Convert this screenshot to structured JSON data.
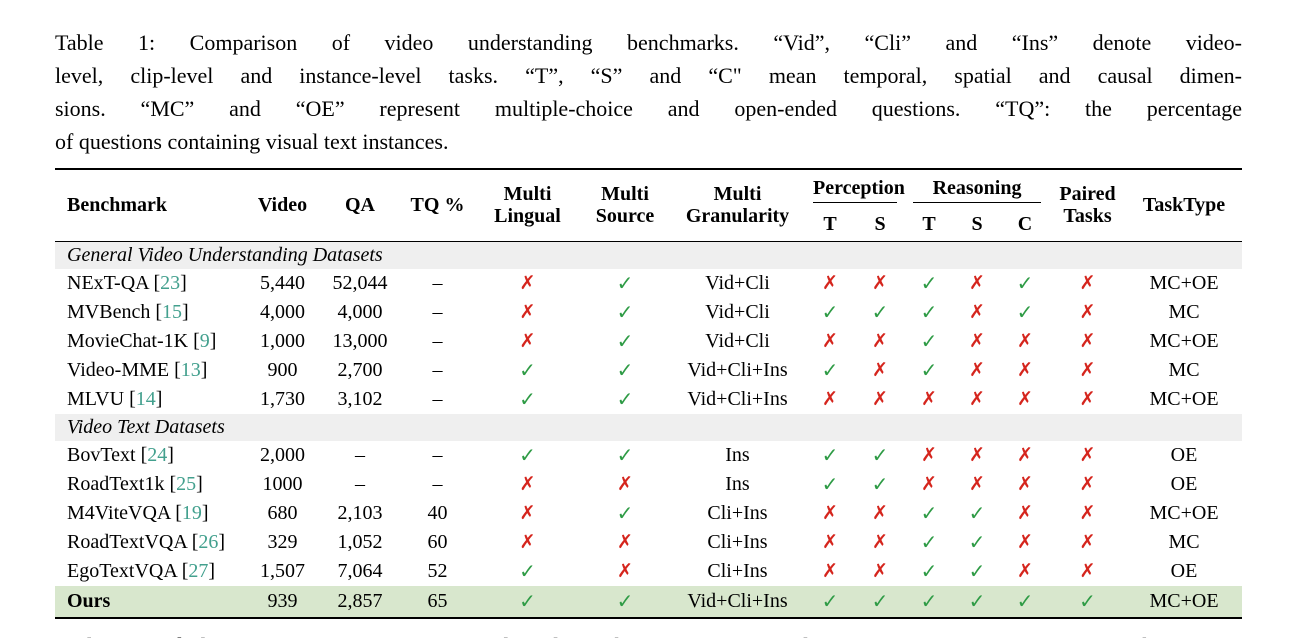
{
  "page": {
    "caption_lines": [
      "Table 1: Comparison of video understanding benchmarks. “Vid”, “Cli” and “Ins” denote video-",
      "level, clip-level and instance-level tasks. “T”, “S” and “C\" mean temporal, spatial and causal dimen-",
      "sions. “MC” and “OE” represent multiple-choice and open-ended questions. “TQ”: the percentage",
      "of questions containing visual text instances."
    ],
    "body_text_below": "vealing underlying motivations or causal relationships. For example, a “SALE” sign in a shop may"
  },
  "table": {
    "header": {
      "benchmark": "Benchmark",
      "video": "Video",
      "qa": "QA",
      "tq": "TQ %",
      "multi_lingual": "Multi Lingual",
      "multi_source": "Multi Source",
      "multi_granularity": "Multi Granularity",
      "perception": "Perception",
      "perception_subs": [
        "T",
        "S"
      ],
      "reasoning": "Reasoning",
      "reasoning_subs": [
        "T",
        "S",
        "C"
      ],
      "paired_tasks": "Paired Tasks",
      "tasktype": "TaskType"
    },
    "icons": {
      "check": "✓",
      "cross": "✗"
    },
    "colors": {
      "check_green": "#2e9b45",
      "cross_red": "#d5251d",
      "citation_teal": "#43a08e",
      "highlight_row_bg": "#d8e7cd",
      "section_row_bg": "#efefef"
    },
    "sections": [
      {
        "title": "General Video Understanding Datasets",
        "rows": [
          {
            "name": "NExT-QA",
            "cite": "23",
            "video": "5,440",
            "qa": "52,044",
            "tq": "–",
            "multi_lingual": "cross",
            "multi_source": "check",
            "granularity": "Vid+Cli",
            "perception": [
              "cross",
              "cross"
            ],
            "reasoning": [
              "check",
              "cross",
              "check"
            ],
            "paired": "cross",
            "tasktype": "MC+OE"
          },
          {
            "name": "MVBench",
            "cite": "15",
            "video": "4,000",
            "qa": "4,000",
            "tq": "–",
            "multi_lingual": "cross",
            "multi_source": "check",
            "granularity": "Vid+Cli",
            "perception": [
              "check",
              "check"
            ],
            "reasoning": [
              "check",
              "cross",
              "check"
            ],
            "paired": "cross",
            "tasktype": "MC"
          },
          {
            "name": "MovieChat-1K",
            "cite": "9",
            "video": "1,000",
            "qa": "13,000",
            "tq": "–",
            "multi_lingual": "cross",
            "multi_source": "check",
            "granularity": "Vid+Cli",
            "perception": [
              "cross",
              "cross"
            ],
            "reasoning": [
              "check",
              "cross",
              "cross"
            ],
            "paired": "cross",
            "tasktype": "MC+OE"
          },
          {
            "name": "Video-MME",
            "cite": "13",
            "video": "900",
            "qa": "2,700",
            "tq": "–",
            "multi_lingual": "check",
            "multi_source": "check",
            "granularity": "Vid+Cli+Ins",
            "perception": [
              "check",
              "cross"
            ],
            "reasoning": [
              "check",
              "cross",
              "cross"
            ],
            "paired": "cross",
            "tasktype": "MC"
          },
          {
            "name": "MLVU",
            "cite": "14",
            "video": "1,730",
            "qa": "3,102",
            "tq": "–",
            "multi_lingual": "check",
            "multi_source": "check",
            "granularity": "Vid+Cli+Ins",
            "perception": [
              "cross",
              "cross"
            ],
            "reasoning": [
              "cross",
              "cross",
              "cross"
            ],
            "paired": "cross",
            "tasktype": "MC+OE"
          }
        ]
      },
      {
        "title": "Video Text Datasets",
        "rows": [
          {
            "name": "BovText",
            "cite": "24",
            "video": "2,000",
            "qa": "–",
            "tq": "–",
            "multi_lingual": "check",
            "multi_source": "check",
            "granularity": "Ins",
            "perception": [
              "check",
              "check"
            ],
            "reasoning": [
              "cross",
              "cross",
              "cross"
            ],
            "paired": "cross",
            "tasktype": "OE"
          },
          {
            "name": "RoadText1k",
            "cite": "25",
            "video": "1000",
            "qa": "–",
            "tq": "–",
            "multi_lingual": "cross",
            "multi_source": "cross",
            "granularity": "Ins",
            "perception": [
              "check",
              "check"
            ],
            "reasoning": [
              "cross",
              "cross",
              "cross"
            ],
            "paired": "cross",
            "tasktype": "OE"
          },
          {
            "name": "M4ViteVQA",
            "cite": "19",
            "video": "680",
            "qa": "2,103",
            "tq": "40",
            "multi_lingual": "cross",
            "multi_source": "check",
            "granularity": "Cli+Ins",
            "perception": [
              "cross",
              "cross"
            ],
            "reasoning": [
              "check",
              "check",
              "cross"
            ],
            "paired": "cross",
            "tasktype": "MC+OE"
          },
          {
            "name": "RoadTextVQA",
            "cite": "26",
            "video": "329",
            "qa": "1,052",
            "tq": "60",
            "multi_lingual": "cross",
            "multi_source": "cross",
            "granularity": "Cli+Ins",
            "perception": [
              "cross",
              "cross"
            ],
            "reasoning": [
              "check",
              "check",
              "cross"
            ],
            "paired": "cross",
            "tasktype": "MC"
          },
          {
            "name": "EgoTextVQA",
            "cite": "27",
            "video": "1,507",
            "qa": "7,064",
            "tq": "52",
            "multi_lingual": "check",
            "multi_source": "cross",
            "granularity": "Cli+Ins",
            "perception": [
              "cross",
              "cross"
            ],
            "reasoning": [
              "check",
              "check",
              "cross"
            ],
            "paired": "cross",
            "tasktype": "OE"
          },
          {
            "name": "Ours",
            "cite": null,
            "video": "939",
            "qa": "2,857",
            "tq": "65",
            "multi_lingual": "check",
            "multi_source": "check",
            "granularity": "Vid+Cli+Ins",
            "perception": [
              "check",
              "check"
            ],
            "reasoning": [
              "check",
              "check",
              "check"
            ],
            "paired": "check",
            "tasktype": "MC+OE",
            "highlight": true,
            "bold": true
          }
        ]
      }
    ]
  }
}
